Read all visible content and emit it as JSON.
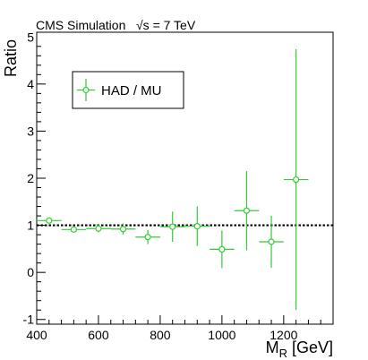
{
  "header": {
    "label": "CMS Simulation",
    "energy": "√s = 7 TeV"
  },
  "chart_data": {
    "type": "scatter",
    "title": "",
    "xlabel_main": "M",
    "xlabel_sub": "R",
    "xlabel_unit": " [GeV]",
    "ylabel": "Ratio",
    "xlim": [
      400,
      1360
    ],
    "ylim": [
      -1.1,
      5.1
    ],
    "x_ticks": [
      400,
      600,
      800,
      1000,
      1200
    ],
    "y_ticks": [
      -1,
      0,
      1,
      2,
      3,
      4,
      5
    ],
    "x_tick_labels": [
      "400",
      "600",
      "800",
      "1000",
      "1200"
    ],
    "y_tick_labels": [
      "-1",
      "0",
      "1",
      "2",
      "3",
      "4",
      "5"
    ],
    "reference_line": 1,
    "legend": {
      "label": "HAD / MU",
      "position": "top-left"
    },
    "series": [
      {
        "name": "HAD / MU",
        "color": "#33cc33",
        "points": [
          {
            "x": 440,
            "y": 1.1,
            "xerr": 40,
            "yerr": 0.05
          },
          {
            "x": 520,
            "y": 0.91,
            "xerr": 40,
            "yerr": 0.05
          },
          {
            "x": 600,
            "y": 0.93,
            "xerr": 40,
            "yerr": 0.08
          },
          {
            "x": 680,
            "y": 0.92,
            "xerr": 40,
            "yerr": 0.12
          },
          {
            "x": 760,
            "y": 0.75,
            "xerr": 40,
            "yerr": 0.15
          },
          {
            "x": 840,
            "y": 0.97,
            "xerr": 40,
            "yerr": 0.32
          },
          {
            "x": 920,
            "y": 0.98,
            "xerr": 40,
            "yerr": 0.42
          },
          {
            "x": 1000,
            "y": 0.49,
            "xerr": 40,
            "yerr": 0.4
          },
          {
            "x": 1080,
            "y": 1.31,
            "xerr": 40,
            "yerr": 0.84
          },
          {
            "x": 1160,
            "y": 0.65,
            "xerr": 40,
            "yerr": 0.55
          },
          {
            "x": 1240,
            "y": 1.97,
            "xerr": 40,
            "yerr": 2.77
          }
        ]
      }
    ]
  }
}
